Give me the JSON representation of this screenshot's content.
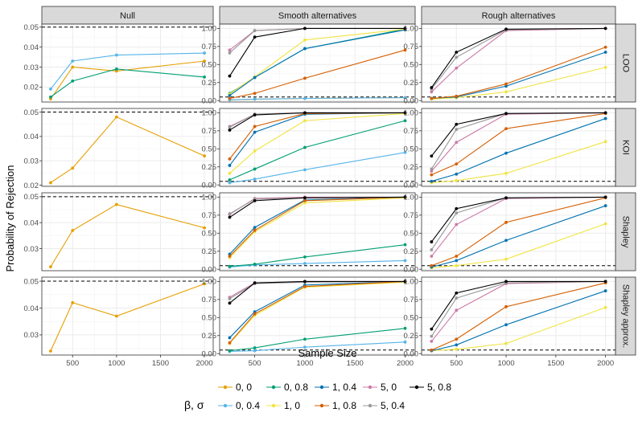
{
  "chart_data": {
    "type": "line",
    "xlabel": "Sample Size",
    "ylabel": "Probability of Rejection",
    "x": [
      250,
      500,
      1000,
      2000
    ],
    "x_ticks": [
      500,
      1000,
      1500,
      2000
    ],
    "xlim": [
      150,
      2100
    ],
    "columns": [
      "Null",
      "Smooth alternatives",
      "Rough alternatives"
    ],
    "rows": [
      "LOO",
      "KOI",
      "Shapley",
      "Shapley approx."
    ],
    "reference_line": {
      "value": 0.05,
      "style": "dashed"
    },
    "legend": {
      "title": "β, σ",
      "entries": [
        {
          "key": "0,0",
          "label": "0, 0",
          "color": "#E69F00"
        },
        {
          "key": "0,0.4",
          "label": "0, 0.4",
          "color": "#56B4E9"
        },
        {
          "key": "0,0.8",
          "label": "0, 0.8",
          "color": "#009E73"
        },
        {
          "key": "1,0",
          "label": "1, 0",
          "color": "#F0E442"
        },
        {
          "key": "1,0.4",
          "label": "1, 0.4",
          "color": "#0072B2"
        },
        {
          "key": "1,0.8",
          "label": "1, 0.8",
          "color": "#D55E00"
        },
        {
          "key": "5,0",
          "label": "5, 0",
          "color": "#CC79A7"
        },
        {
          "key": "5,0.4",
          "label": "5, 0.4",
          "color": "#999999"
        },
        {
          "key": "5,0.8",
          "label": "5, 0.8",
          "color": "#000000"
        }
      ]
    },
    "panels": [
      {
        "row": 0,
        "col": 0,
        "ylim": [
          0.0125,
          0.0515
        ],
        "yticks": [
          "0.02",
          "0.03",
          "0.04",
          "0.05"
        ],
        "series": [
          {
            "key": "0,0",
            "values": [
              0.014,
              0.03,
              0.028,
              0.033
            ]
          },
          {
            "key": "0,0.4",
            "values": [
              0.019,
              0.033,
              0.036,
              0.037
            ]
          },
          {
            "key": "0,0.8",
            "values": [
              0.015,
              0.023,
              0.029,
              0.025
            ]
          }
        ]
      },
      {
        "row": 0,
        "col": 1,
        "ylim": [
          -0.02,
          1.06
        ],
        "yticks": [
          "0.00",
          "0.25",
          "0.50",
          "0.75",
          "1.00"
        ],
        "series": [
          {
            "key": "0,0",
            "values": [
              0.01,
              0.02,
              0.03,
              0.04
            ]
          },
          {
            "key": "0,0.4",
            "values": [
              0.01,
              0.02,
              0.03,
              0.04
            ]
          },
          {
            "key": "0,0.8",
            "values": [
              0.1,
              0.32,
              0.72,
              0.99
            ]
          },
          {
            "key": "1,0",
            "values": [
              0.09,
              0.33,
              0.84,
              0.99
            ]
          },
          {
            "key": "1,0.4",
            "values": [
              0.07,
              0.32,
              0.72,
              0.98
            ]
          },
          {
            "key": "1,0.8",
            "values": [
              0.03,
              0.1,
              0.31,
              0.7
            ]
          },
          {
            "key": "5,0",
            "values": [
              0.7,
              0.97,
              1.0,
              1.0
            ]
          },
          {
            "key": "5,0.4",
            "values": [
              0.66,
              0.97,
              1.0,
              1.0
            ]
          },
          {
            "key": "5,0.8",
            "values": [
              0.34,
              0.88,
              1.0,
              1.0
            ]
          }
        ]
      },
      {
        "row": 0,
        "col": 2,
        "ylim": [
          -0.02,
          1.06
        ],
        "yticks": [
          "0.00",
          "0.25",
          "0.50",
          "0.75",
          "1.00"
        ],
        "series": [
          {
            "key": "1,0",
            "values": [
              0.02,
              0.04,
              0.12,
              0.46
            ]
          },
          {
            "key": "1,0.4",
            "values": [
              0.03,
              0.05,
              0.2,
              0.67
            ]
          },
          {
            "key": "1,0.8",
            "values": [
              0.03,
              0.06,
              0.23,
              0.74
            ]
          },
          {
            "key": "5,0",
            "values": [
              0.12,
              0.45,
              0.97,
              1.0
            ]
          },
          {
            "key": "5,0.4",
            "values": [
              0.16,
              0.6,
              0.98,
              1.0
            ]
          },
          {
            "key": "5,0.8",
            "values": [
              0.18,
              0.67,
              0.99,
              1.0
            ]
          }
        ]
      },
      {
        "row": 1,
        "col": 0,
        "ylim": [
          0.0195,
          0.0515
        ],
        "yticks": [
          "0.02",
          "0.03",
          "0.04",
          "0.05"
        ],
        "series": [
          {
            "key": "0,0",
            "values": [
              0.021,
              0.027,
              0.048,
              0.032
            ]
          }
        ]
      },
      {
        "row": 1,
        "col": 1,
        "ylim": [
          -0.02,
          1.06
        ],
        "yticks": [
          "0.00",
          "0.25",
          "0.50",
          "0.75",
          "1.00"
        ],
        "series": [
          {
            "key": "0,0.4",
            "values": [
              0.03,
              0.08,
              0.21,
              0.45
            ]
          },
          {
            "key": "0,0.8",
            "values": [
              0.07,
              0.22,
              0.52,
              0.89
            ]
          },
          {
            "key": "1,0",
            "values": [
              0.16,
              0.47,
              0.89,
              0.99
            ]
          },
          {
            "key": "1,0.4",
            "values": [
              0.27,
              0.73,
              0.98,
              1.0
            ]
          },
          {
            "key": "1,0.8",
            "values": [
              0.36,
              0.81,
              0.99,
              1.0
            ]
          },
          {
            "key": "5,0",
            "values": [
              0.81,
              0.98,
              1.0,
              1.0
            ]
          },
          {
            "key": "5,0.4",
            "values": [
              0.8,
              0.98,
              1.0,
              1.0
            ]
          },
          {
            "key": "5,0.8",
            "values": [
              0.76,
              0.97,
              1.0,
              1.0
            ]
          }
        ]
      },
      {
        "row": 1,
        "col": 2,
        "ylim": [
          -0.02,
          1.06
        ],
        "yticks": [
          "0.00",
          "0.25",
          "0.50",
          "0.75",
          "1.00"
        ],
        "series": [
          {
            "key": "1,0",
            "values": [
              0.03,
              0.06,
              0.16,
              0.6
            ]
          },
          {
            "key": "1,0.4",
            "values": [
              0.05,
              0.15,
              0.44,
              0.92
            ]
          },
          {
            "key": "1,0.8",
            "values": [
              0.14,
              0.29,
              0.78,
              0.99
            ]
          },
          {
            "key": "5,0",
            "values": [
              0.19,
              0.59,
              0.98,
              1.0
            ]
          },
          {
            "key": "5,0.4",
            "values": [
              0.22,
              0.77,
              0.99,
              1.0
            ]
          },
          {
            "key": "5,0.8",
            "values": [
              0.4,
              0.84,
              0.99,
              1.0
            ]
          }
        ]
      },
      {
        "row": 2,
        "col": 0,
        "ylim": [
          0.0215,
          0.0515
        ],
        "yticks": [
          "0.03",
          "0.04",
          "0.05"
        ],
        "series": [
          {
            "key": "0,0",
            "values": [
              0.023,
              0.037,
              0.047,
              0.038
            ]
          }
        ]
      },
      {
        "row": 2,
        "col": 1,
        "ylim": [
          -0.02,
          1.06
        ],
        "yticks": [
          "0.00",
          "0.25",
          "0.50",
          "0.75",
          "1.00"
        ],
        "series": [
          {
            "key": "0,0.4",
            "values": [
              0.03,
              0.06,
              0.08,
              0.12
            ]
          },
          {
            "key": "0,0.8",
            "values": [
              0.04,
              0.07,
              0.17,
              0.34
            ]
          },
          {
            "key": "1,0",
            "values": [
              0.16,
              0.52,
              0.92,
              0.99
            ]
          },
          {
            "key": "1,0.4",
            "values": [
              0.21,
              0.58,
              0.96,
              1.0
            ]
          },
          {
            "key": "1,0.8",
            "values": [
              0.18,
              0.54,
              0.95,
              1.0
            ]
          },
          {
            "key": "5,0",
            "values": [
              0.76,
              0.98,
              1.0,
              1.0
            ]
          },
          {
            "key": "5,0.4",
            "values": [
              0.77,
              0.97,
              0.99,
              1.0
            ]
          },
          {
            "key": "5,0.8",
            "values": [
              0.72,
              0.95,
              0.99,
              1.0
            ]
          }
        ]
      },
      {
        "row": 2,
        "col": 2,
        "ylim": [
          -0.02,
          1.06
        ],
        "yticks": [
          "0.00",
          "0.25",
          "0.50",
          "0.75",
          "1.00"
        ],
        "series": [
          {
            "key": "1,0",
            "values": [
              0.02,
              0.05,
              0.14,
              0.63
            ]
          },
          {
            "key": "1,0.4",
            "values": [
              0.03,
              0.12,
              0.4,
              0.88
            ]
          },
          {
            "key": "1,0.8",
            "values": [
              0.05,
              0.18,
              0.65,
              0.99
            ]
          },
          {
            "key": "5,0",
            "values": [
              0.18,
              0.62,
              0.98,
              1.0
            ]
          },
          {
            "key": "5,0.4",
            "values": [
              0.27,
              0.78,
              0.99,
              1.0
            ]
          },
          {
            "key": "5,0.8",
            "values": [
              0.38,
              0.84,
              0.99,
              1.0
            ]
          }
        ]
      },
      {
        "row": 3,
        "col": 0,
        "ylim": [
          0.0225,
          0.0515
        ],
        "yticks": [
          "0.03",
          "0.04",
          "0.05"
        ],
        "series": [
          {
            "key": "0,0",
            "values": [
              0.024,
              0.042,
              0.037,
              0.049
            ]
          }
        ]
      },
      {
        "row": 3,
        "col": 1,
        "ylim": [
          -0.02,
          1.06
        ],
        "yticks": [
          "0.00",
          "0.25",
          "0.50",
          "0.75",
          "1.00"
        ],
        "series": [
          {
            "key": "0,0.4",
            "values": [
              0.03,
              0.04,
              0.09,
              0.16
            ]
          },
          {
            "key": "0,0.8",
            "values": [
              0.04,
              0.08,
              0.2,
              0.35
            ]
          },
          {
            "key": "1,0",
            "values": [
              0.14,
              0.53,
              0.92,
              0.99
            ]
          },
          {
            "key": "1,0.4",
            "values": [
              0.22,
              0.58,
              0.95,
              1.0
            ]
          },
          {
            "key": "1,0.8",
            "values": [
              0.15,
              0.55,
              0.93,
              1.0
            ]
          },
          {
            "key": "5,0",
            "values": [
              0.78,
              0.98,
              1.0,
              1.0
            ]
          },
          {
            "key": "5,0.4",
            "values": [
              0.76,
              0.97,
              0.99,
              1.0
            ]
          },
          {
            "key": "5,0.8",
            "values": [
              0.7,
              0.98,
              1.0,
              1.0
            ]
          }
        ]
      },
      {
        "row": 3,
        "col": 2,
        "ylim": [
          -0.02,
          1.06
        ],
        "yticks": [
          "0.00",
          "0.25",
          "0.50",
          "0.75",
          "1.00"
        ],
        "series": [
          {
            "key": "1,0",
            "values": [
              0.04,
              0.06,
              0.14,
              0.64
            ]
          },
          {
            "key": "1,0.4",
            "values": [
              0.04,
              0.12,
              0.4,
              0.87
            ]
          },
          {
            "key": "1,0.8",
            "values": [
              0.05,
              0.2,
              0.65,
              0.98
            ]
          },
          {
            "key": "5,0",
            "values": [
              0.17,
              0.6,
              0.97,
              1.0
            ]
          },
          {
            "key": "5,0.4",
            "values": [
              0.24,
              0.77,
              0.98,
              1.0
            ]
          },
          {
            "key": "5,0.8",
            "values": [
              0.34,
              0.84,
              1.0,
              1.0
            ]
          }
        ]
      }
    ]
  }
}
